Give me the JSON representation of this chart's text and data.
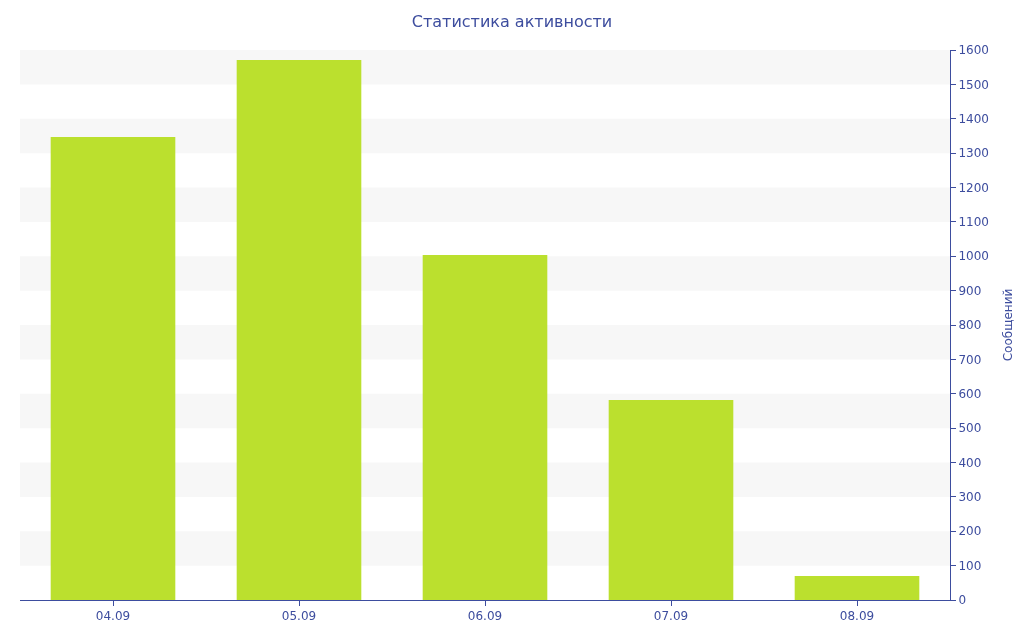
{
  "chart_data": {
    "type": "bar",
    "title": "Статистика активности",
    "ylabel": "Сообщений",
    "categories": [
      "04.09",
      "05.09",
      "06.09",
      "07.09",
      "08.09"
    ],
    "values": [
      1347,
      1571,
      1004,
      582,
      70
    ],
    "color": "#bbe02e",
    "ylim": [
      0,
      1600
    ],
    "yticks": [
      0,
      100,
      200,
      300,
      400,
      500,
      600,
      700,
      800,
      900,
      1000,
      1100,
      1200,
      1300,
      1400,
      1500,
      1600
    ],
    "bands": [
      {
        "axis": "y",
        "from": 100,
        "to": 200,
        "color": "#f7f7f7"
      },
      {
        "axis": "y",
        "from": 300,
        "to": 400,
        "color": "#f7f7f7"
      },
      {
        "axis": "y",
        "from": 500,
        "to": 600,
        "color": "#f7f7f7"
      },
      {
        "axis": "y",
        "from": 700,
        "to": 800,
        "color": "#f7f7f7"
      },
      {
        "axis": "y",
        "from": 900,
        "to": 1000,
        "color": "#f7f7f7"
      },
      {
        "axis": "y",
        "from": 1100,
        "to": 1200,
        "color": "#f7f7f7"
      },
      {
        "axis": "y",
        "from": 1300,
        "to": 1400,
        "color": "#f7f7f7"
      },
      {
        "axis": "y",
        "from": 1500,
        "to": 1600,
        "color": "#f7f7f7"
      }
    ],
    "grid": false
  }
}
